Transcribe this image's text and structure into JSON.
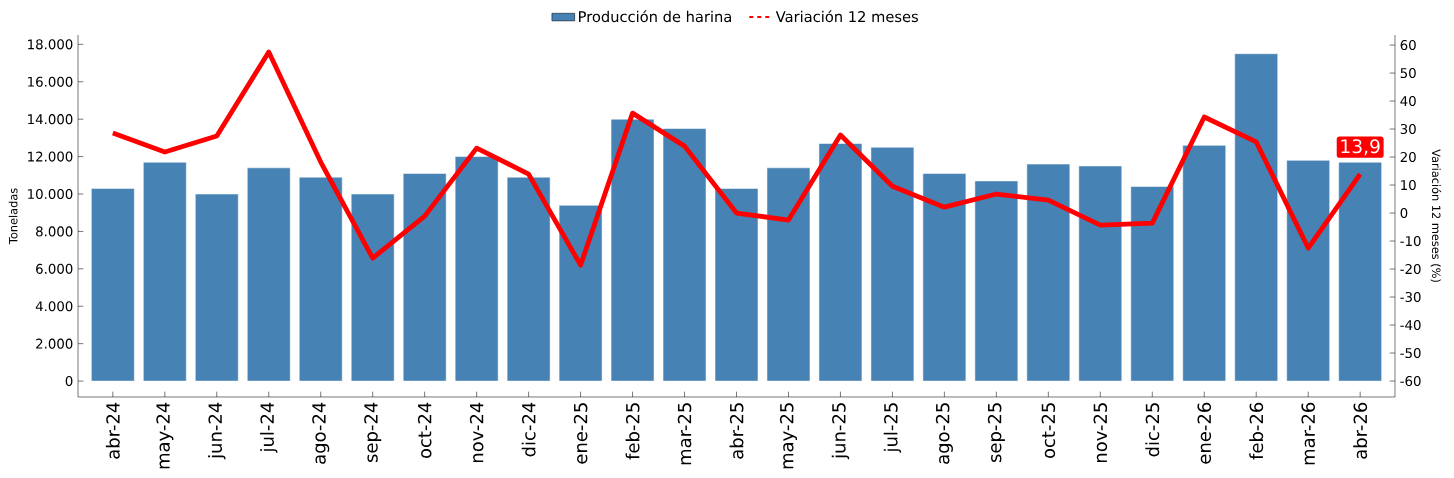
{
  "chart_data": {
    "type": "bar",
    "categories": [
      "abr-24",
      "may-24",
      "jun-24",
      "jul-24",
      "ago-24",
      "sep-24",
      "oct-24",
      "nov-24",
      "dic-24",
      "ene-25",
      "feb-25",
      "mar-25",
      "abr-25",
      "may-25",
      "jun-25",
      "jul-25",
      "ago-25",
      "sep-25",
      "oct-25",
      "nov-25",
      "dic-25",
      "ene-26",
      "feb-26",
      "mar-26",
      "abr-26"
    ],
    "series": [
      {
        "name": "Producción de harina",
        "color": "#4682b4",
        "values": [
          10300,
          11700,
          10000,
          11400,
          10900,
          10000,
          11100,
          12000,
          10900,
          9400,
          14000,
          13500,
          10300,
          11400,
          12700,
          12500,
          11100,
          10700,
          11600,
          11500,
          10400,
          12600,
          17500,
          11800,
          11700
        ]
      },
      {
        "name": "Variación 12 meses",
        "type": "line",
        "axis": "y2",
        "color": "#ff0000",
        "values": [
          28.6,
          21.8,
          27.5,
          57.5,
          18.2,
          -16.1,
          -1.1,
          23.2,
          13.9,
          -18.6,
          35.7,
          23.9,
          0,
          -2.5,
          27.9,
          9.6,
          2.1,
          6.8,
          4.6,
          -4.3,
          -3.6,
          34.3,
          25.4,
          -12.5,
          13.9
        ],
        "value_labels": [
          null,
          null,
          null,
          null,
          null,
          null,
          null,
          null,
          null,
          null,
          null,
          null,
          null,
          null,
          null,
          null,
          null,
          null,
          null,
          null,
          null,
          null,
          null,
          null,
          "13,9"
        ]
      }
    ],
    "ylabel": "Toneladas",
    "y2label": "Variación 12 meses (%)",
    "ylim": [
      -850,
      18500
    ],
    "yticks": [
      {
        "value": 0,
        "label": "0"
      },
      {
        "value": 2000,
        "label": "2.000"
      },
      {
        "value": 4000,
        "label": "4.000"
      },
      {
        "value": 6000,
        "label": "6.000"
      },
      {
        "value": 8000,
        "label": "8.000"
      },
      {
        "value": 10000,
        "label": "10.000"
      },
      {
        "value": 12000,
        "label": "12.000"
      },
      {
        "value": 14000,
        "label": "14.000"
      },
      {
        "value": 16000,
        "label": "16.000"
      },
      {
        "value": 18000,
        "label": "18.000"
      }
    ],
    "y2lim": [
      -65.7,
      63.6
    ],
    "y2ticks": [
      -60,
      -50,
      -40,
      -30,
      -20,
      -10,
      0,
      10,
      20,
      30,
      40,
      50,
      60
    ],
    "legend": "top"
  }
}
